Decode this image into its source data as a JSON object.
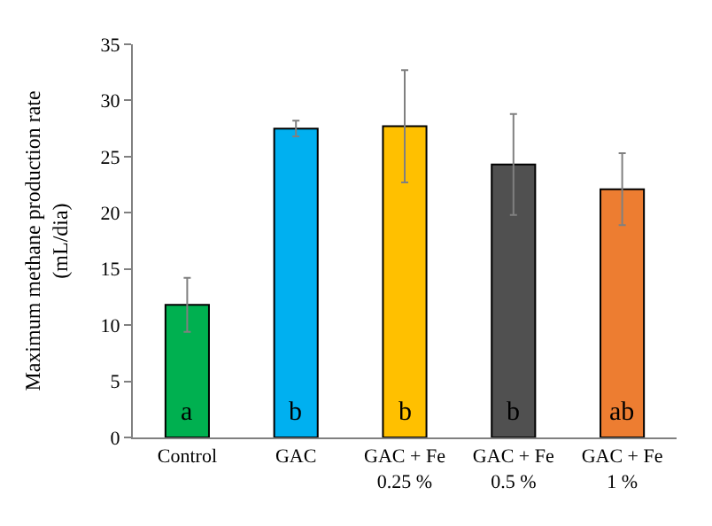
{
  "chart_data": {
    "type": "bar",
    "ylabel": "Maximum methane production rate\n(mL/dia)",
    "categories": [
      "Control",
      "GAC",
      "GAC + Fe\n0.25 %",
      "GAC + Fe\n0.5 %",
      "GAC + Fe\n1 %"
    ],
    "values": [
      11.8,
      27.5,
      27.7,
      24.3,
      22.1
    ],
    "colors": [
      "#00b050",
      "#00b0f0",
      "#ffc000",
      "#505050",
      "#ed7d31"
    ],
    "errors": [
      2.4,
      0.7,
      5.0,
      4.5,
      3.2
    ],
    "ylim": [
      0,
      35
    ],
    "yticks": [
      0,
      5,
      10,
      15,
      20,
      25,
      30,
      35
    ],
    "annotations": [
      "a",
      "b",
      "b",
      "b",
      "ab"
    ]
  }
}
